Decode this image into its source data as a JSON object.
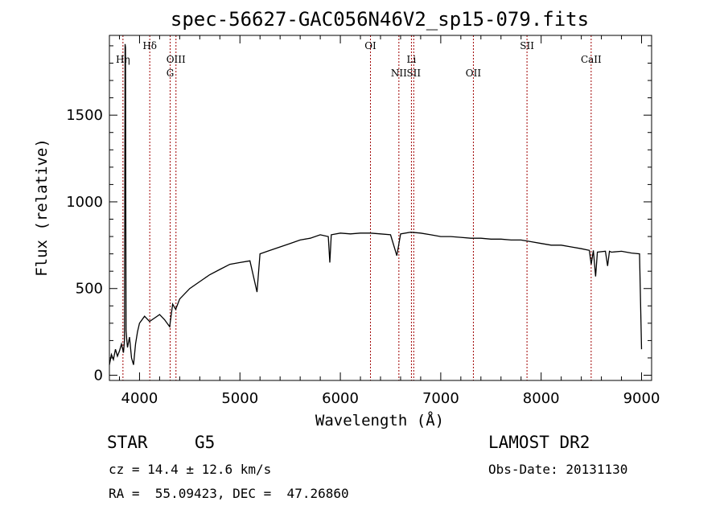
{
  "chart_data": {
    "type": "line",
    "title": "spec-56627-GAC056N46V2_sp15-079.fits",
    "xlabel": "Wavelength (Å)",
    "ylabel": "Flux (relative)",
    "xlim": [
      3700,
      9100
    ],
    "ylim": [
      -30,
      1960
    ],
    "xticks": [
      4000,
      5000,
      6000,
      7000,
      8000,
      9000
    ],
    "yticks": [
      0,
      500,
      1000,
      1500
    ],
    "grid": false,
    "spectrum": {
      "x": [
        3700,
        3720,
        3740,
        3760,
        3780,
        3800,
        3820,
        3840,
        3850,
        3856,
        3860,
        3866,
        3872,
        3880,
        3900,
        3920,
        3940,
        3960,
        3980,
        4000,
        4050,
        4100,
        4150,
        4200,
        4250,
        4300,
        4330,
        4360,
        4400,
        4500,
        4600,
        4700,
        4800,
        4900,
        5000,
        5100,
        5170,
        5200,
        5300,
        5400,
        5500,
        5600,
        5700,
        5800,
        5880,
        5895,
        5910,
        6000,
        6100,
        6200,
        6300,
        6400,
        6500,
        6563,
        6600,
        6700,
        6800,
        6900,
        7000,
        7100,
        7200,
        7300,
        7400,
        7500,
        7600,
        7700,
        7800,
        7900,
        8000,
        8100,
        8200,
        8300,
        8400,
        8480,
        8498,
        8520,
        8542,
        8560,
        8640,
        8662,
        8680,
        8700,
        8800,
        8900,
        8980,
        9000
      ],
      "y": [
        60,
        120,
        90,
        150,
        110,
        140,
        180,
        130,
        200,
        1910,
        1890,
        260,
        210,
        160,
        220,
        100,
        60,
        180,
        250,
        300,
        340,
        310,
        330,
        350,
        320,
        280,
        410,
        380,
        440,
        500,
        540,
        580,
        610,
        640,
        650,
        660,
        480,
        700,
        720,
        740,
        760,
        780,
        790,
        810,
        800,
        650,
        810,
        820,
        815,
        820,
        820,
        815,
        810,
        690,
        815,
        825,
        820,
        810,
        800,
        800,
        795,
        790,
        790,
        785,
        785,
        780,
        780,
        770,
        760,
        750,
        750,
        740,
        730,
        720,
        640,
        720,
        570,
        710,
        715,
        630,
        715,
        710,
        715,
        705,
        700,
        150
      ]
    },
    "lines": [
      {
        "name": "Hη",
        "wavelength": 3835,
        "label_row": 1
      },
      {
        "name": "Hδ",
        "wavelength": 4102,
        "label_row": 0
      },
      {
        "name": "OIII",
        "wavelength": 4363,
        "label_row": 1
      },
      {
        "name": "G",
        "wavelength": 4305,
        "label_row": 2
      },
      {
        "name": "OI",
        "wavelength": 6300,
        "label_row": 0
      },
      {
        "name": "NII",
        "wavelength": 6583,
        "label_row": 2
      },
      {
        "name": "Li",
        "wavelength": 6708,
        "label_row": 1
      },
      {
        "name": "SII",
        "wavelength": 6731,
        "label_row": 2
      },
      {
        "name": "OII",
        "wavelength": 7325,
        "label_row": 2
      },
      {
        "name": "SII",
        "wavelength": 7859,
        "label_row": 0
      },
      {
        "name": "CaII",
        "wavelength": 8498,
        "label_row": 1
      }
    ],
    "colors": {
      "line_markers": "#a00000",
      "spectrum": "#000000"
    }
  },
  "info": {
    "object_class": "STAR",
    "subclass": "G5",
    "survey": "LAMOST DR2",
    "redshift": "cz = 14.4 ± 12.6 km/s",
    "obs_date": "Obs-Date: 20131130",
    "coords": "RA =  55.09423, DEC =  47.26860"
  }
}
